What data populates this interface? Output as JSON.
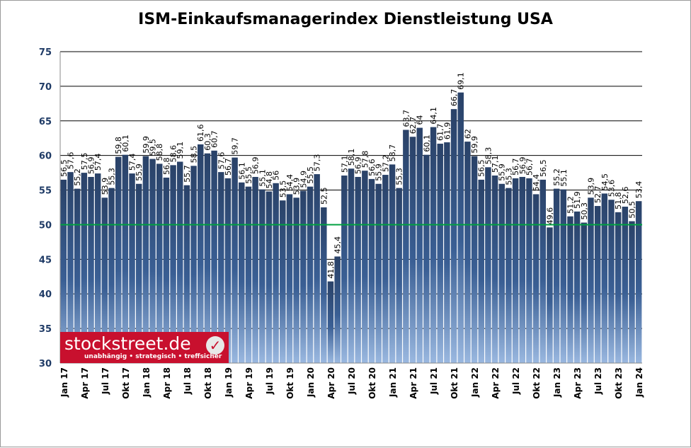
{
  "chart_data": {
    "type": "bar",
    "title": "ISM-Einkaufsmanagerindex Dienstleistung USA",
    "xlabel": "",
    "ylabel": "",
    "ylim": [
      30,
      75
    ],
    "yticks": [
      30,
      35,
      40,
      45,
      50,
      55,
      60,
      65,
      70,
      75
    ],
    "reference_line": {
      "value": 50,
      "color": "#00a040"
    },
    "grid": true,
    "bar_color_top": "#2a4268",
    "bar_color_bottom": "#9ab8e0",
    "xtick_labels": [
      "Jan 17",
      "Apr 17",
      "Jul 17",
      "Okt 17",
      "Jan 18",
      "Apr 18",
      "Jul 18",
      "Okt 18",
      "Jan 19",
      "Apr 19",
      "Jul 19",
      "Okt 19",
      "Jan 20",
      "Apr 20",
      "Jul 20",
      "Okt 20",
      "Jan 21",
      "Apr 21",
      "Jul 21",
      "Okt 21",
      "Jan 22",
      "Apr 22",
      "Jul 22",
      "Okt 22",
      "Jan 23",
      "Apr 23",
      "Jul 23",
      "Okt 23",
      "Jan 24"
    ],
    "values": [
      56.5,
      57.6,
      55.2,
      57.5,
      56.9,
      57.4,
      53.9,
      55.3,
      59.8,
      60.1,
      57.4,
      55.9,
      59.9,
      59.5,
      58.8,
      56.8,
      58.6,
      59.1,
      55.7,
      58.5,
      61.6,
      60.3,
      60.7,
      57.6,
      56.7,
      59.7,
      56.1,
      55.5,
      56.9,
      55.1,
      54.8,
      56,
      53.5,
      54.4,
      53.9,
      54.9,
      55.5,
      57.3,
      52.5,
      41.8,
      45.4,
      57.1,
      58.1,
      56.9,
      57.8,
      56.6,
      55.9,
      57.2,
      58.7,
      55.3,
      63.7,
      62.7,
      64,
      60.1,
      64.1,
      61.7,
      61.9,
      66.7,
      69.1,
      62,
      59.9,
      56.5,
      58.3,
      57.1,
      55.9,
      55.3,
      56.7,
      56.9,
      56.7,
      54.4,
      56.5,
      49.6,
      55.2,
      55.1,
      51.2,
      51.9,
      50.3,
      53.9,
      52.7,
      54.5,
      53.6,
      51.8,
      52.6,
      50.5,
      53.4
    ]
  },
  "logo": {
    "name": "stockstreet.de",
    "tagline": "unabhängig • strategisch • treffsicher"
  }
}
